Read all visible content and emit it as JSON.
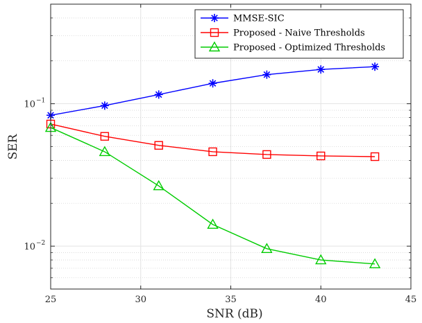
{
  "chart_data": {
    "type": "line",
    "xlabel": "SNR (dB)",
    "ylabel": "SER",
    "xlim": [
      25,
      45
    ],
    "ylim": [
      0.005,
      0.5
    ],
    "yscale": "log",
    "grid": true,
    "legend_position": "top-right",
    "x_ticks": [
      "25",
      "30",
      "35",
      "40",
      "45"
    ],
    "y_ticks": [
      {
        "value": 0.1,
        "base": "10",
        "exp": "−1"
      },
      {
        "value": 0.01,
        "base": "10",
        "exp": "−2"
      }
    ],
    "x": [
      25,
      28,
      31,
      34,
      37,
      40,
      43
    ],
    "series": [
      {
        "name": "MMSE-SIC",
        "color": "#0000ff",
        "marker": "asterisk",
        "values": [
          0.083,
          0.097,
          0.116,
          0.139,
          0.16,
          0.174,
          0.182
        ]
      },
      {
        "name": "Proposed - Naive Thresholds",
        "color": "#ff0000",
        "marker": "square",
        "values": [
          0.072,
          0.059,
          0.051,
          0.046,
          0.044,
          0.043,
          0.0425
        ]
      },
      {
        "name": "Proposed - Optimized Thresholds",
        "color": "#00cc00",
        "marker": "triangle",
        "values": [
          0.068,
          0.046,
          0.0265,
          0.0142,
          0.0096,
          0.008,
          0.0075
        ]
      }
    ]
  }
}
